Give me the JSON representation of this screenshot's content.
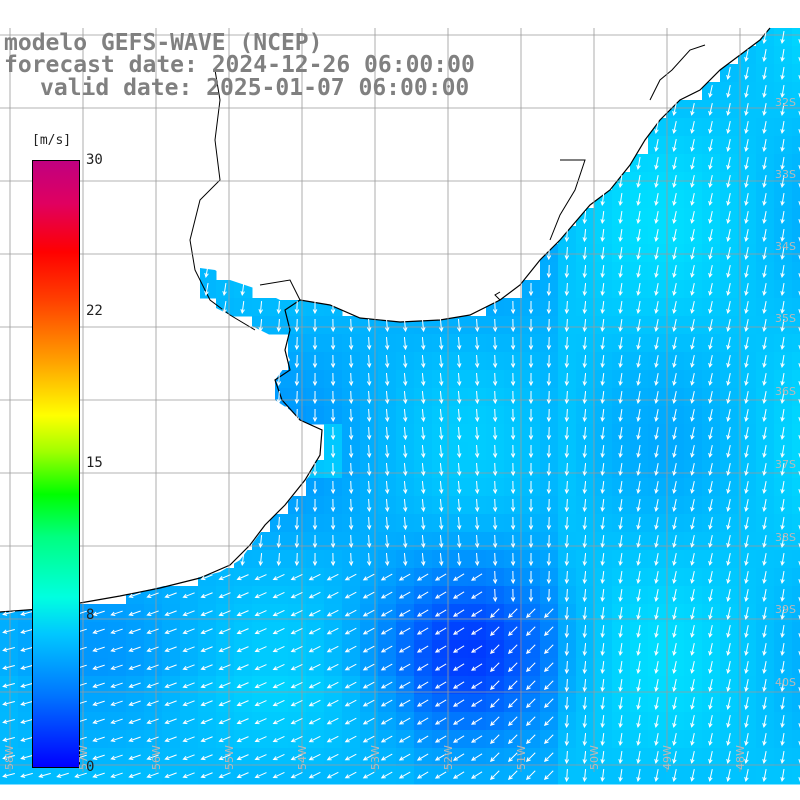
{
  "header": {
    "line1": "modelo GEFS-WAVE (NCEP)",
    "line2": "forecast date: 2024-12-26 06:00:00",
    "line3": "valid date: 2025-01-07 06:00:00"
  },
  "colorbar": {
    "unit": "[m/s]",
    "ticks": [
      {
        "label": "30",
        "value": 30
      },
      {
        "label": "22",
        "value": 22
      },
      {
        "label": "15",
        "value": 15
      },
      {
        "label": "8",
        "value": 8
      },
      {
        "label": "0",
        "value": 0
      }
    ],
    "min": 0,
    "max": 30
  },
  "map": {
    "field": "wind speed",
    "land_color": "#ffffff",
    "coast_color": "#000000",
    "grid_color": "#9a9a9a",
    "arrow_color": "#ffffff",
    "lat_labels": [
      "32S",
      "33S",
      "34S",
      "35S",
      "36S",
      "37S",
      "38S",
      "39S",
      "40S"
    ],
    "lon_labels": [
      "58W",
      "57W",
      "56W",
      "55W",
      "54W",
      "53W",
      "52W",
      "51W",
      "50W",
      "49W",
      "48W"
    ]
  }
}
